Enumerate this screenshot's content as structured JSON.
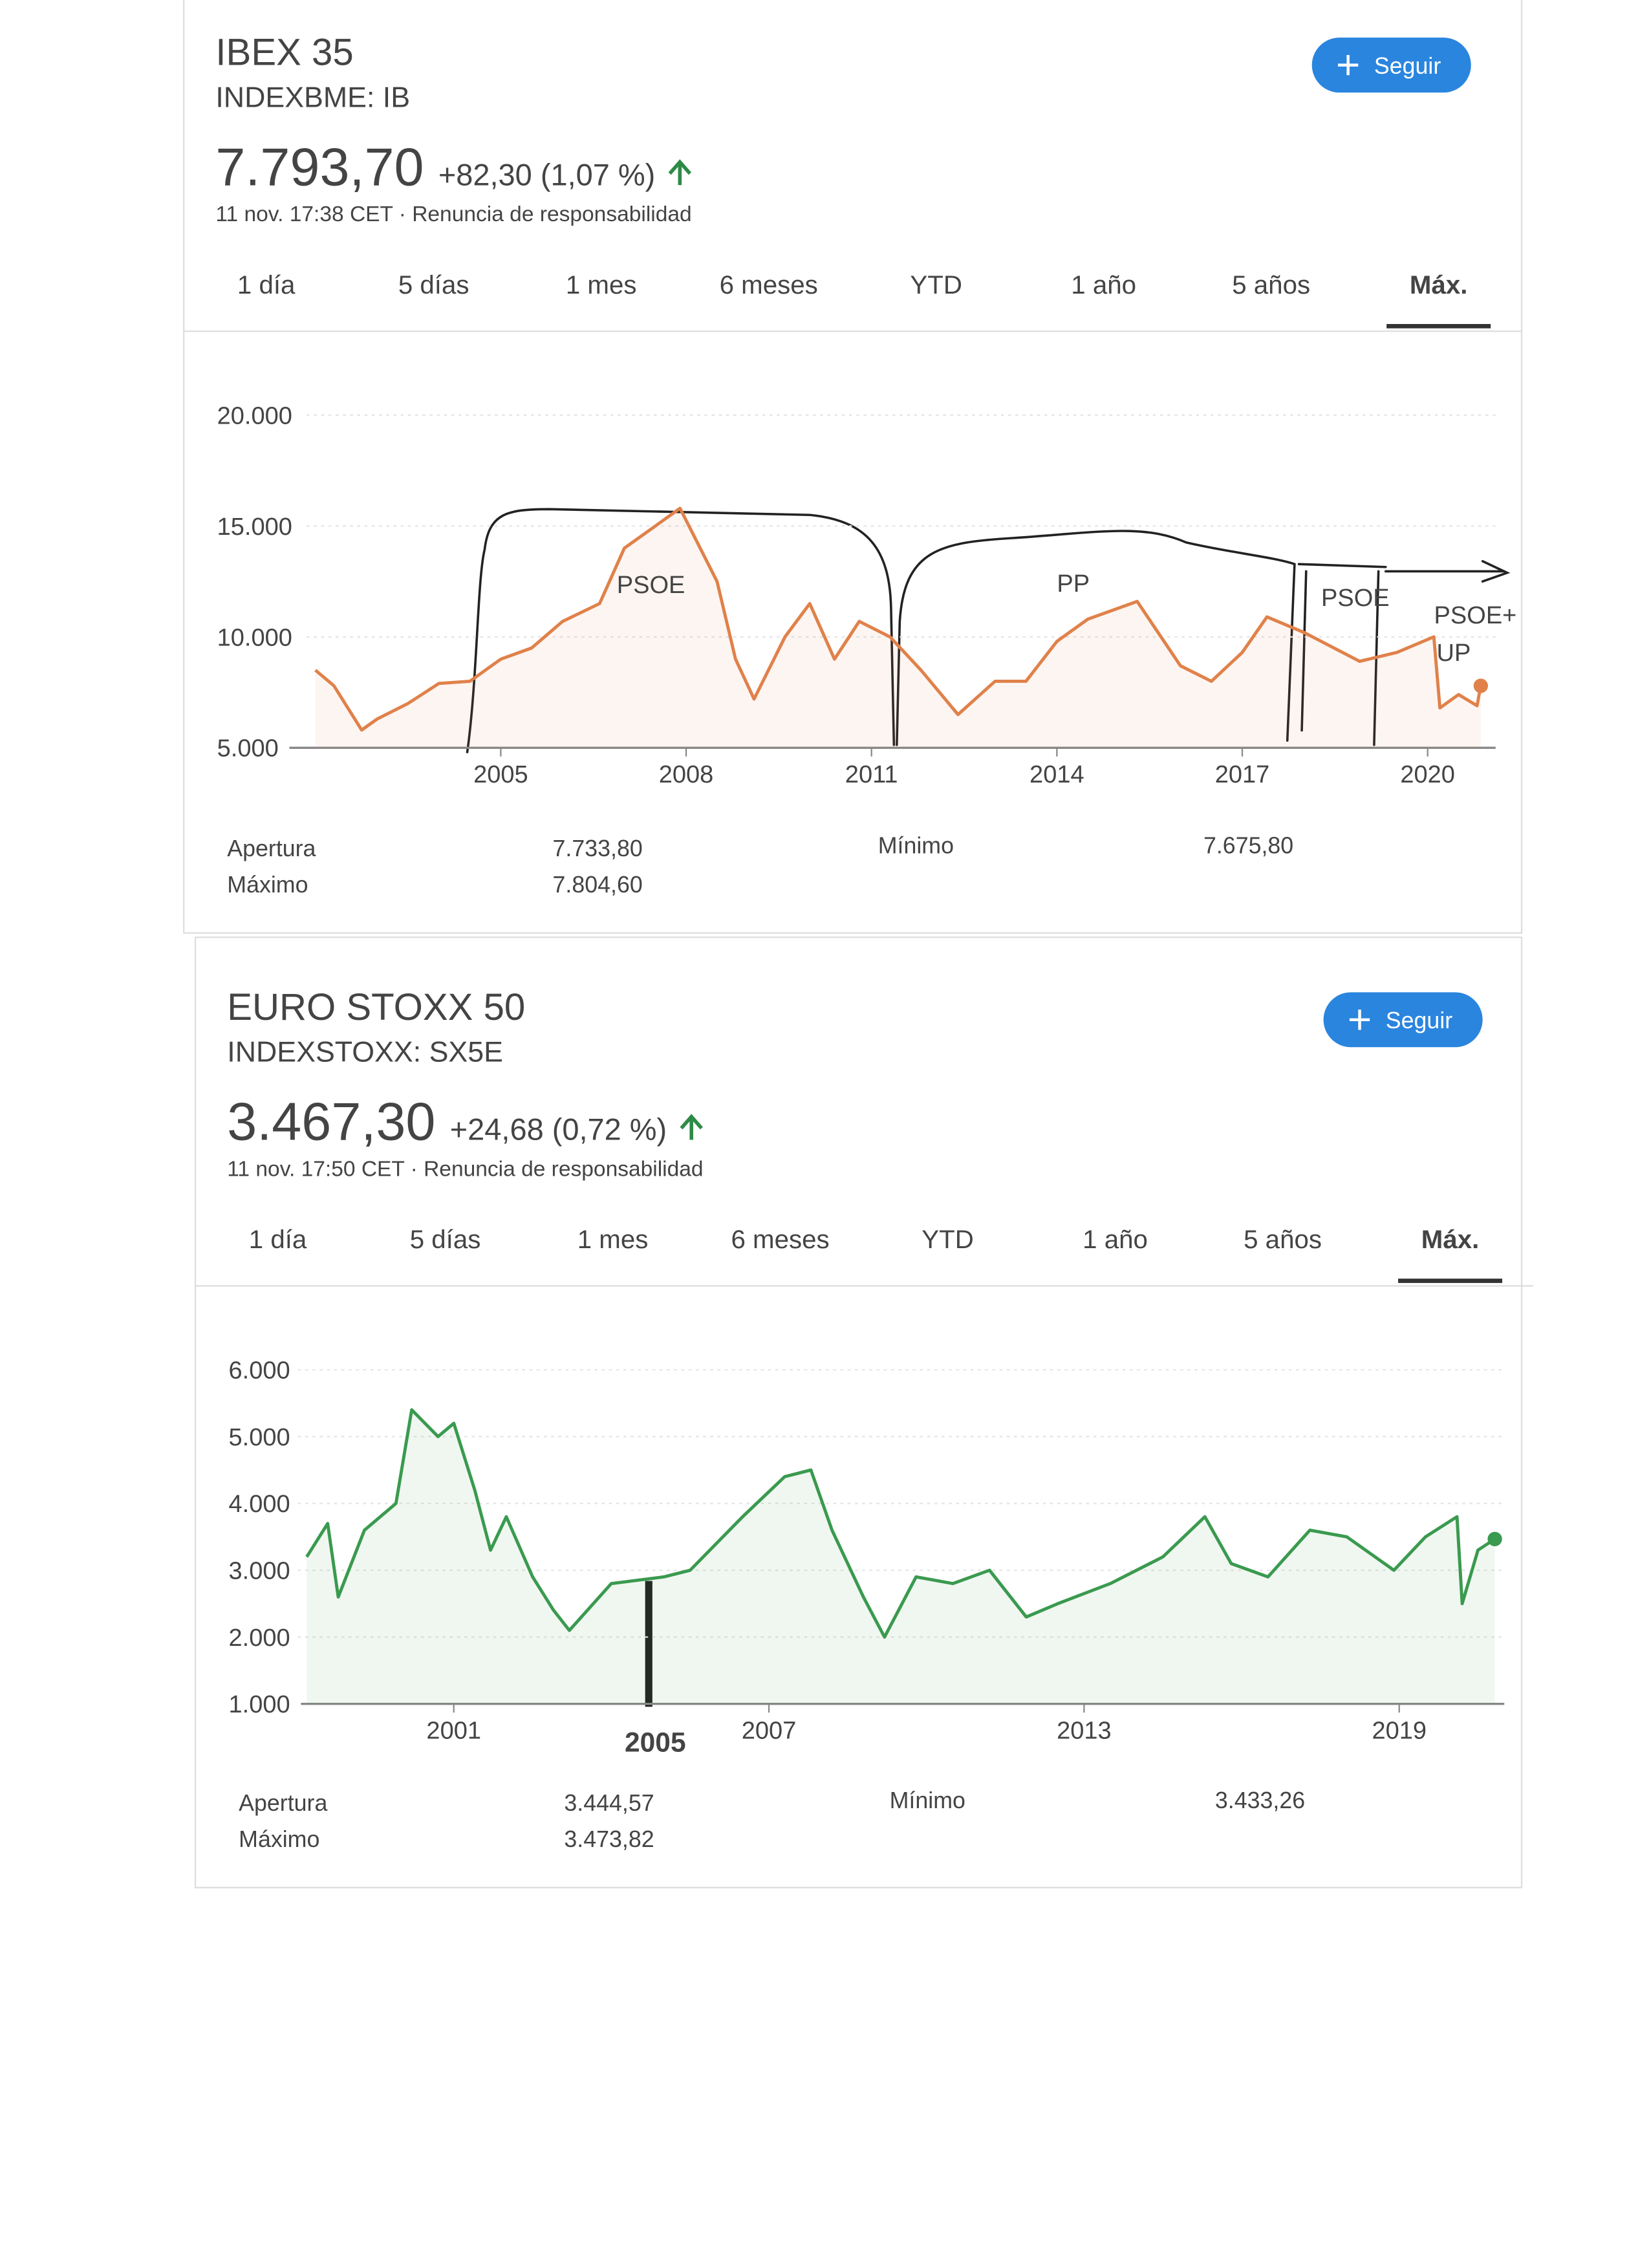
{
  "chart_data": [
    {
      "type": "line",
      "title": "IBEX 35",
      "subtitle": "INDEXBME: IB",
      "price": "7.793,70",
      "change": "+82,30 (1,07 %)",
      "timestamp": "11 nov. 17:38 CET · Renuncia de responsabilidad",
      "button": "Seguir",
      "tabs": [
        "1 día",
        "5 días",
        "1 mes",
        "6 meses",
        "YTD",
        "1 año",
        "5 años",
        "Máx."
      ],
      "active_tab": 7,
      "color": "#e0814a",
      "positive_color": "#2e8b47",
      "x": [
        2002.0,
        2002.3,
        2002.75,
        2003.0,
        2003.5,
        2004.0,
        2004.5,
        2005.0,
        2005.5,
        2006.0,
        2006.6,
        2007.0,
        2007.5,
        2007.9,
        2008.5,
        2008.8,
        2009.1,
        2009.6,
        2010.0,
        2010.4,
        2010.8,
        2011.3,
        2011.8,
        2012.4,
        2013.0,
        2013.5,
        2014.0,
        2014.5,
        2015.3,
        2016.0,
        2016.5,
        2017.0,
        2017.4,
        2018.0,
        2018.9,
        2019.5,
        2020.1,
        2020.2,
        2020.5,
        2020.8,
        2020.86
      ],
      "values": [
        8500,
        7800,
        5800,
        6300,
        7000,
        7900,
        8000,
        9000,
        9500,
        10700,
        11500,
        14000,
        15000,
        15800,
        12500,
        9000,
        7200,
        10000,
        11500,
        9000,
        10700,
        10000,
        8500,
        6500,
        8000,
        8000,
        9800,
        10800,
        11600,
        8700,
        8000,
        9300,
        10900,
        10200,
        8900,
        9300,
        10000,
        6800,
        7400,
        6900,
        7793.7
      ],
      "xlim": [
        2002,
        2021.1
      ],
      "ylim": [
        5000,
        20000
      ],
      "xticks": [
        2005,
        2008,
        2011,
        2014,
        2017,
        2020
      ],
      "yticks": [
        {
          "value": 5000,
          "label": "5.000"
        },
        {
          "value": 10000,
          "label": "10.000"
        },
        {
          "value": 15000,
          "label": "15.000"
        },
        {
          "value": 20000,
          "label": "20.000"
        }
      ],
      "grid": true,
      "stats": [
        {
          "label": "Apertura",
          "value": "7.733,80"
        },
        {
          "label": "Máximo",
          "value": "7.804,60"
        },
        {
          "label": "Mínimo",
          "value": "7.675,80"
        }
      ],
      "annotations": [
        "PSOE",
        "PP",
        "PSOE",
        "PSOE+",
        "UP"
      ]
    },
    {
      "type": "line",
      "title": "EURO STOXX 50",
      "subtitle": "INDEXSTOXX: SX5E",
      "price": "3.467,30",
      "change": "+24,68 (0,72 %)",
      "timestamp": "11 nov. 17:50 CET · Renuncia de responsabilidad",
      "button": "Seguir",
      "tabs": [
        "1 día",
        "5 días",
        "1 mes",
        "6 meses",
        "YTD",
        "1 año",
        "5 años",
        "Máx."
      ],
      "active_tab": 7,
      "color": "#3a9a4f",
      "positive_color": "#2e8b47",
      "x": [
        1998.2,
        1998.6,
        1998.8,
        1999.3,
        1999.9,
        2000.2,
        2000.7,
        2001.0,
        2001.4,
        2001.7,
        2002.0,
        2002.5,
        2002.9,
        2003.2,
        2004.0,
        2005.0,
        2005.5,
        2006.5,
        2007.3,
        2007.8,
        2008.2,
        2008.8,
        2009.2,
        2009.8,
        2010.5,
        2011.2,
        2011.9,
        2012.5,
        2013.5,
        2014.5,
        2015.3,
        2015.8,
        2016.5,
        2017.3,
        2018.0,
        2018.9,
        2019.5,
        2020.1,
        2020.2,
        2020.5,
        2020.82
      ],
      "values": [
        3200,
        3700,
        2600,
        3600,
        4000,
        5400,
        5000,
        5200,
        4200,
        3300,
        3800,
        2900,
        2400,
        2100,
        2800,
        2900,
        3000,
        3800,
        4400,
        4500,
        3600,
        2600,
        2000,
        2900,
        2800,
        3000,
        2300,
        2500,
        2800,
        3200,
        3800,
        3100,
        2900,
        3600,
        3500,
        3000,
        3500,
        3800,
        2500,
        3300,
        3467.3
      ],
      "xlim": [
        1998.2,
        2021
      ],
      "ylim": [
        1000,
        6000
      ],
      "xticks": [
        2001,
        2007,
        2013,
        2019
      ],
      "yticks": [
        {
          "value": 1000,
          "label": "1.000"
        },
        {
          "value": 2000,
          "label": "2.000"
        },
        {
          "value": 3000,
          "label": "3.000"
        },
        {
          "value": 4000,
          "label": "4.000"
        },
        {
          "value": 5000,
          "label": "5.000"
        },
        {
          "value": 6000,
          "label": "6.000"
        }
      ],
      "grid": true,
      "stats": [
        {
          "label": "Apertura",
          "value": "3.444,57"
        },
        {
          "label": "Máximo",
          "value": "3.473,82"
        },
        {
          "label": "Mínimo",
          "value": "3.433,26"
        }
      ],
      "annotations": [
        "2005"
      ]
    }
  ]
}
